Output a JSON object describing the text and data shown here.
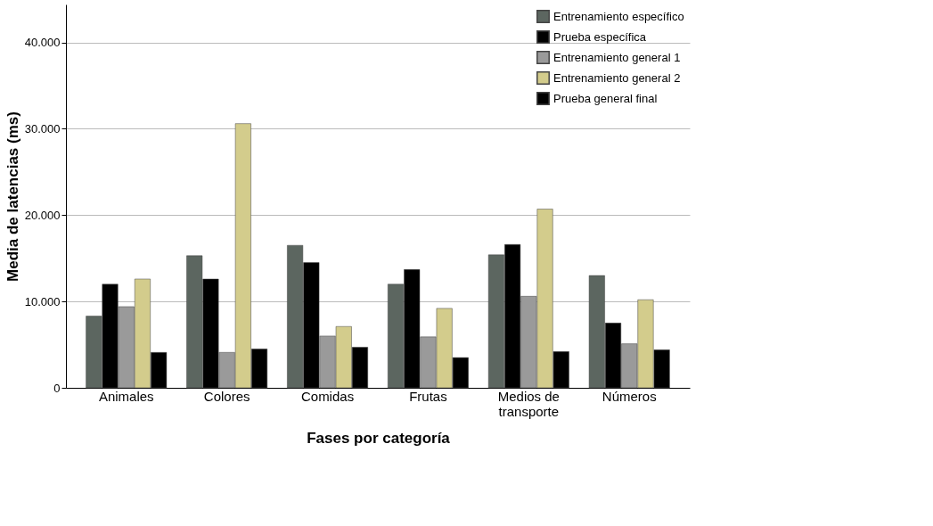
{
  "chart_data": {
    "type": "bar",
    "xlabel": "Fases por categoría",
    "ylabel": "Media de latencias (ms)",
    "categories": [
      "Animales",
      "Colores",
      "Comidas",
      "Frutas",
      "Medios de transporte",
      "Números"
    ],
    "series": [
      {
        "name": "Entrenamiento específico",
        "color": "#5c6660",
        "values": [
          8300,
          15300,
          16500,
          12000,
          15400,
          13000
        ]
      },
      {
        "name": "Prueba específica",
        "color": "#000000",
        "values": [
          12000,
          12600,
          14500,
          13700,
          16600,
          7500
        ]
      },
      {
        "name": "Entrenamiento general 1",
        "color": "#9a9a9a",
        "values": [
          9400,
          4100,
          6000,
          5900,
          10600,
          5100
        ]
      },
      {
        "name": "Entrenamiento general 2",
        "color": "#d3cc8c",
        "values": [
          12600,
          30600,
          7100,
          9200,
          20700,
          10200
        ]
      },
      {
        "name": "Prueba general final",
        "color": "#000000",
        "values": [
          4100,
          4500,
          4700,
          3500,
          4200,
          4400
        ]
      }
    ],
    "ylim": [
      0,
      44400
    ],
    "yticks": [
      0,
      {
        "value": 10000,
        "label": "10.000"
      },
      {
        "value": 20000,
        "label": "20.000"
      },
      {
        "value": 30000,
        "label": "30.000"
      },
      {
        "value": 40000,
        "label": "40.000"
      }
    ],
    "grid": "y",
    "legend": "top right"
  }
}
